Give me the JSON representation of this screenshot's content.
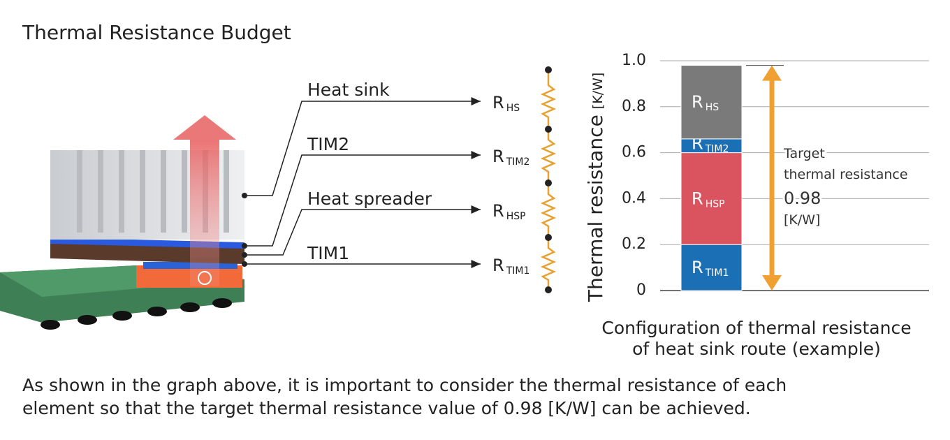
{
  "title": "Thermal Resistance Budget",
  "parts": [
    "Heat sink",
    "TIM2",
    "Heat spreader",
    "TIM1"
  ],
  "chart_data": {
    "type": "stacked_bar",
    "ylabel": "Thermal resistance",
    "yunit": "[K/W]",
    "ylim": [
      0,
      1
    ],
    "yticks": [
      0,
      0.2,
      0.4,
      0.6,
      0.8,
      {
        "value": 1,
        "label": "1.0"
      }
    ],
    "grid": true,
    "series": [
      {
        "name": "R",
        "subscript": "TIM1",
        "color": "#1a6fb5",
        "values": [
          0.2
        ]
      },
      {
        "name": "R",
        "subscript": "HSP",
        "color": "#d9545e",
        "values": [
          0.4
        ]
      },
      {
        "name": "R",
        "subscript": "TIM2",
        "color": "#1a6fb5",
        "values": [
          0.06
        ]
      },
      {
        "name": "R",
        "subscript": "HS",
        "color": "#7a7a7a",
        "values": [
          0.32
        ]
      }
    ],
    "target": {
      "lines": [
        "Target",
        "thermal resistance"
      ],
      "value": 0.98,
      "unit": "[K/W]",
      "color": "#f0a030"
    },
    "caption": [
      "Configuration of thermal resistance",
      "of heat sink route (example)"
    ]
  },
  "paragraph": [
    "As shown in the graph above, it is important to consider the thermal resistance of each",
    "element so that the target thermal resistance value of 0.98 [K/W] can be achieved."
  ]
}
